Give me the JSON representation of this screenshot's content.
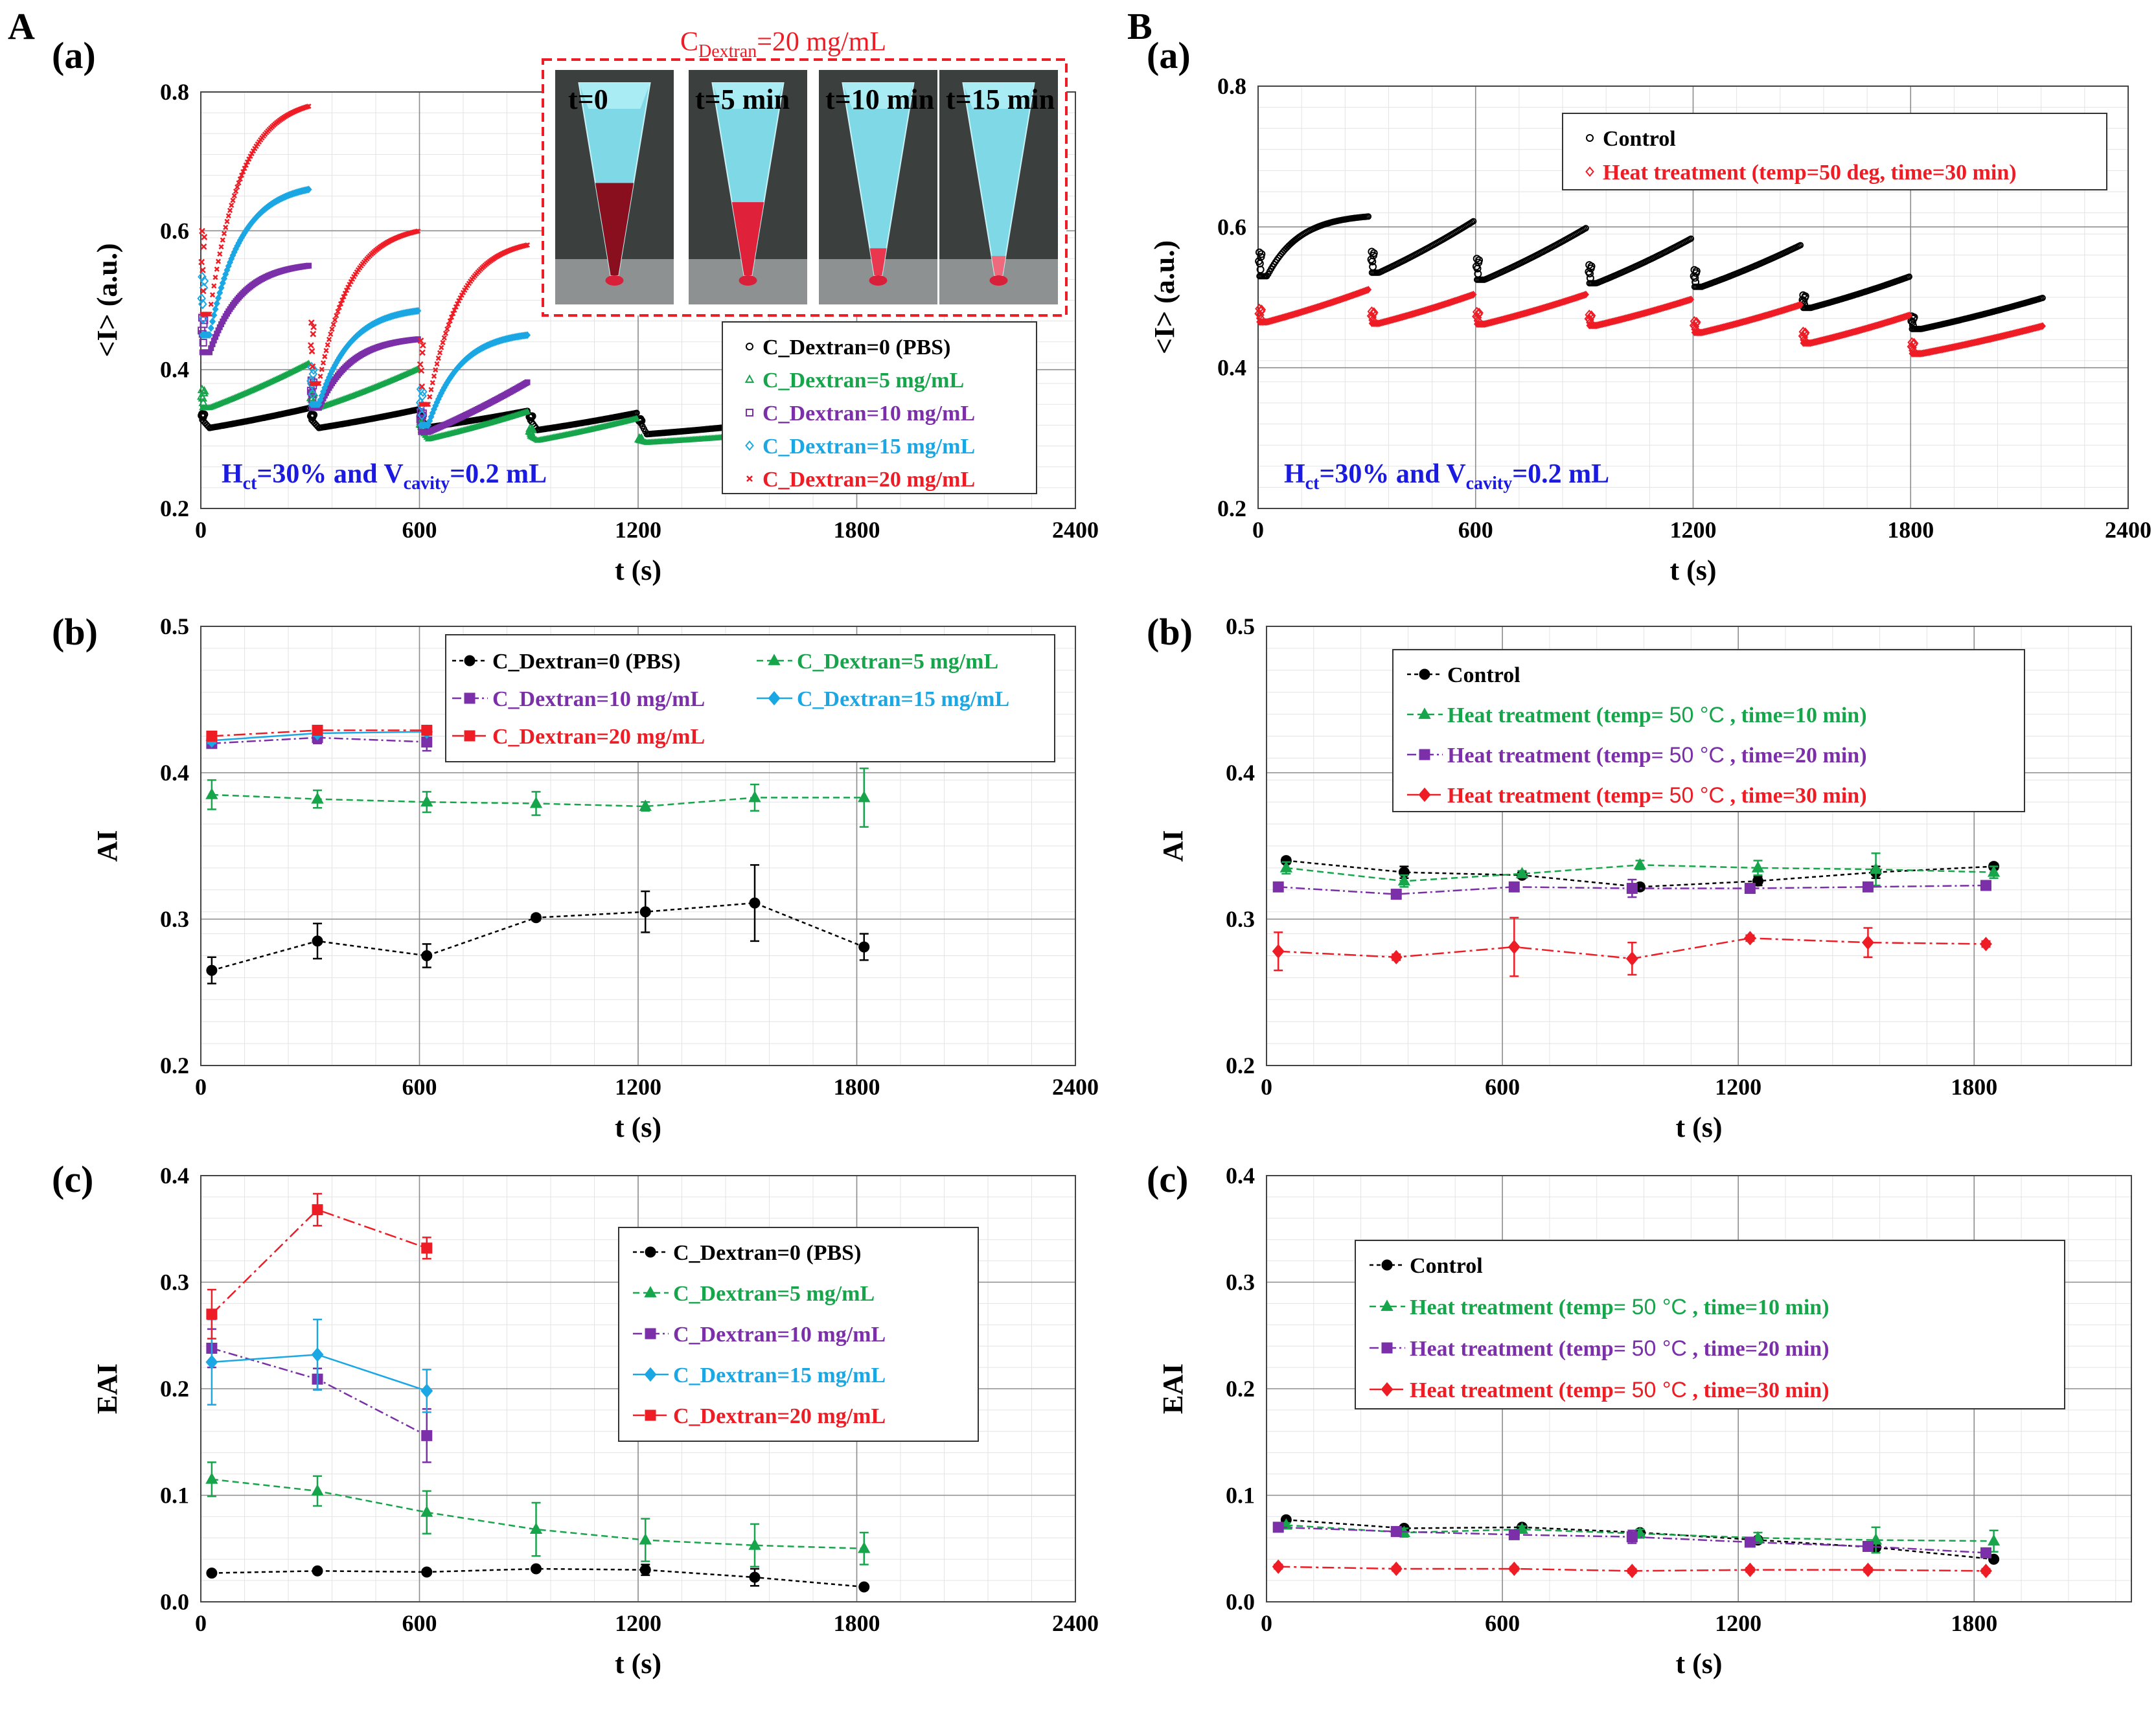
{
  "panel_labels": {
    "A": "A",
    "B": "B"
  },
  "inset": {
    "title_main": "C",
    "title_sub": "Dextran",
    "title_rest": "=20 mg/mL",
    "frames": [
      "t=0",
      "t=5 min",
      "t=10 min",
      "t=15 min"
    ]
  },
  "chart_data": [
    {
      "id": "Aa",
      "type": "scatter",
      "sub_label": "(a)",
      "xlabel": "t (s)",
      "ylabel": "<I> (a.u.)",
      "xlim": [
        0,
        2400
      ],
      "ylim": [
        0.2,
        0.8
      ],
      "xticks": [
        0,
        600,
        1200,
        1800,
        2400
      ],
      "yticks": [
        0.2,
        0.4,
        0.6,
        0.8
      ],
      "annotation": {
        "a": "H",
        "a_sub": "ct",
        "b": "=30% and V",
        "b_sub": "cavity",
        "c": "=0.2 mL"
      },
      "legend": [
        "C_Dextran=0 (PBS)",
        "C_Dextran=5 mg/mL",
        "C_Dextran=10 mg/mL",
        "C_Dextran=15 mg/mL",
        "C_Dextran=20 mg/mL"
      ],
      "series": [
        {
          "name": "C_Dextran=0 (PBS)",
          "color": "#000000",
          "marker": "circle",
          "cycles": [
            [
              0,
              300,
              0.33,
              0.316,
              0.345
            ],
            [
              300,
              600,
              0.33,
              0.316,
              0.343
            ],
            [
              600,
              900,
              0.33,
              0.317,
              0.341
            ],
            [
              900,
              1200,
              0.33,
              0.313,
              0.338
            ],
            [
              1200,
              1500,
              0.33,
              0.307,
              0.32
            ]
          ]
        },
        {
          "name": "C_Dextran=5 mg/mL",
          "color": "#17a54b",
          "marker": "triangle",
          "cycles": [
            [
              0,
              300,
              0.345,
              0.345,
              0.41
            ],
            [
              300,
              600,
              0.345,
              0.345,
              0.402
            ],
            [
              600,
              900,
              0.315,
              0.3,
              0.34
            ],
            [
              900,
              1200,
              0.305,
              0.298,
              0.33
            ],
            [
              1200,
              1500,
              0.298,
              0.295,
              0.305
            ]
          ]
        },
        {
          "name": "C_Dextran=10 mg/mL",
          "color": "#7b2fa8",
          "marker": "square",
          "cycles": [
            [
              0,
              300,
              0.425,
              0.425,
              0.55
            ],
            [
              300,
              600,
              0.345,
              0.345,
              0.444
            ],
            [
              600,
              900,
              0.31,
              0.31,
              0.383
            ]
          ]
        },
        {
          "name": "C_Dextran=15 mg/mL",
          "color": "#1aa7e3",
          "marker": "diamond",
          "cycles": [
            [
              0,
              300,
              0.45,
              0.45,
              0.66
            ],
            [
              300,
              600,
              0.35,
              0.35,
              0.485
            ],
            [
              600,
              900,
              0.32,
              0.32,
              0.45
            ]
          ]
        },
        {
          "name": "C_Dextran=20 mg/mL",
          "color": "#ee1c25",
          "marker": "x",
          "cycles": [
            [
              0,
              300,
              0.48,
              0.48,
              0.78
            ],
            [
              300,
              600,
              0.38,
              0.38,
              0.6
            ],
            [
              600,
              900,
              0.35,
              0.35,
              0.58
            ]
          ]
        }
      ]
    },
    {
      "id": "Ba",
      "type": "scatter",
      "sub_label": "(a)",
      "xlabel": "t (s)",
      "ylabel": "<I> (a.u.)",
      "xlim": [
        0,
        2400
      ],
      "ylim": [
        0.2,
        0.8
      ],
      "xticks": [
        0,
        600,
        1200,
        1800,
        2400
      ],
      "yticks": [
        0.2,
        0.4,
        0.6,
        0.8
      ],
      "annotation": {
        "a": "H",
        "a_sub": "ct",
        "b": "=30% and V",
        "b_sub": "cavity",
        "c": "=0.2 mL"
      },
      "legend": [
        "Control",
        "Heat treatment (temp=50 deg, time=30 min)"
      ],
      "series": [
        {
          "name": "Control",
          "color": "#000000",
          "marker": "circle",
          "cycles": [
            [
              0,
              310,
              0.53,
              0.53,
              0.615
            ],
            [
              310,
              600,
              0.535,
              0.535,
              0.61
            ],
            [
              600,
              910,
              0.525,
              0.525,
              0.6
            ],
            [
              910,
              1200,
              0.52,
              0.52,
              0.585
            ],
            [
              1200,
              1500,
              0.515,
              0.515,
              0.575
            ],
            [
              1500,
              1800,
              0.485,
              0.485,
              0.53
            ],
            [
              1800,
              2170,
              0.455,
              0.455,
              0.5
            ]
          ]
        },
        {
          "name": "Heat treatment (temp=50 deg, time=30 min)",
          "color": "#ee1c25",
          "marker": "diamond",
          "cycles": [
            [
              0,
              310,
              0.465,
              0.465,
              0.512
            ],
            [
              310,
              600,
              0.463,
              0.463,
              0.505
            ],
            [
              600,
              910,
              0.462,
              0.462,
              0.505
            ],
            [
              910,
              1200,
              0.46,
              0.46,
              0.498
            ],
            [
              1200,
              1500,
              0.45,
              0.45,
              0.49
            ],
            [
              1500,
              1800,
              0.435,
              0.435,
              0.475
            ],
            [
              1800,
              2170,
              0.42,
              0.42,
              0.46
            ]
          ]
        }
      ]
    },
    {
      "id": "Ab",
      "type": "line",
      "sub_label": "(b)",
      "xlabel": "t (s)",
      "ylabel": "AI",
      "xlim": [
        0,
        2400
      ],
      "ylim": [
        0.2,
        0.5
      ],
      "xticks": [
        0,
        600,
        1200,
        1800,
        2400
      ],
      "yticks": [
        0.2,
        0.3,
        0.4,
        0.5
      ],
      "legend": [
        "C_Dextran=0 (PBS)",
        "C_Dextran=5 mg/mL",
        "C_Dextran=10 mg/mL",
        "C_Dextran=15 mg/mL",
        "C_Dextran=20 mg/mL"
      ],
      "series": [
        {
          "name": "C_Dextran=0 (PBS)",
          "color": "#000000",
          "marker": "circle",
          "x": [
            30,
            320,
            620,
            920,
            1220,
            1520,
            1820
          ],
          "y": [
            0.265,
            0.285,
            0.275,
            0.301,
            0.305,
            0.311,
            0.281
          ],
          "err": [
            0.009,
            0.012,
            0.008,
            0.002,
            0.014,
            0.026,
            0.009
          ]
        },
        {
          "name": "C_Dextran=5 mg/mL",
          "color": "#17a54b",
          "marker": "triangle",
          "x": [
            30,
            320,
            620,
            920,
            1220,
            1520,
            1820
          ],
          "y": [
            0.385,
            0.382,
            0.38,
            0.379,
            0.377,
            0.383,
            0.383
          ],
          "err": [
            0.01,
            0.006,
            0.007,
            0.008,
            0.003,
            0.009,
            0.02
          ]
        },
        {
          "name": "C_Dextran=10 mg/mL",
          "color": "#7b2fa8",
          "marker": "square",
          "x": [
            30,
            320,
            620
          ],
          "y": [
            0.42,
            0.424,
            0.421
          ],
          "err": [
            0.003,
            0.004,
            0.006
          ]
        },
        {
          "name": "C_Dextran=15 mg/mL",
          "color": "#1aa7e3",
          "marker": "diamond",
          "x": [
            30,
            320,
            620
          ],
          "y": [
            0.422,
            0.427,
            0.428
          ],
          "err": [
            0.002,
            0.002,
            0.002
          ]
        },
        {
          "name": "C_Dextran=20 mg/mL",
          "color": "#ee1c25",
          "marker": "square",
          "x": [
            30,
            320,
            620
          ],
          "y": [
            0.425,
            0.429,
            0.429
          ],
          "err": [
            0.002,
            0.002,
            0.002
          ]
        }
      ]
    },
    {
      "id": "Bb",
      "type": "line",
      "sub_label": "(b)",
      "xlabel": "t (s)",
      "ylabel": "AI",
      "xlim": [
        0,
        2200
      ],
      "ylim": [
        0.2,
        0.5
      ],
      "xticks": [
        0,
        600,
        1200,
        1800
      ],
      "yticks": [
        0.2,
        0.3,
        0.4,
        0.5
      ],
      "legend_unit": "°C",
      "legend": [
        "Control",
        "Heat treatment (temp= 50 °C , time=10 min)",
        "Heat treatment (temp= 50 °C , time=20 min)",
        "Heat treatment (temp= 50 °C , time=30 min)"
      ],
      "series": [
        {
          "name": "Control",
          "color": "#000000",
          "marker": "circle",
          "x": [
            50,
            350,
            650,
            950,
            1250,
            1550,
            1850
          ],
          "y": [
            0.34,
            0.332,
            0.33,
            0.322,
            0.326,
            0.332,
            0.336
          ],
          "err": [
            0.002,
            0.004,
            0.002,
            0.002,
            0.003,
            0.004,
            0.002
          ]
        },
        {
          "name": "Heat treatment (temp= 50 °C , time=10 min)",
          "color": "#17a54b",
          "marker": "triangle",
          "x": [
            50,
            350,
            650,
            950,
            1250,
            1550,
            1850
          ],
          "y": [
            0.335,
            0.326,
            0.331,
            0.337,
            0.335,
            0.334,
            0.332
          ],
          "err": [
            0.004,
            0.004,
            0.002,
            0.003,
            0.005,
            0.011,
            0.004
          ]
        },
        {
          "name": "Heat treatment (temp= 50 °C , time=20 min)",
          "color": "#7b2fa8",
          "marker": "square",
          "x": [
            30,
            330,
            630,
            930,
            1230,
            1530,
            1830
          ],
          "y": [
            0.322,
            0.317,
            0.322,
            0.321,
            0.321,
            0.322,
            0.323
          ],
          "err": [
            0.003,
            0.002,
            0.003,
            0.006,
            0.003,
            0.002,
            0.002
          ]
        },
        {
          "name": "Heat treatment (temp= 50 °C , time=30 min)",
          "color": "#ee1c25",
          "marker": "diamond",
          "x": [
            30,
            330,
            630,
            930,
            1230,
            1530,
            1830
          ],
          "y": [
            0.278,
            0.274,
            0.281,
            0.273,
            0.287,
            0.284,
            0.283
          ],
          "err": [
            0.013,
            0.002,
            0.02,
            0.011,
            0.002,
            0.01,
            0.002
          ]
        }
      ]
    },
    {
      "id": "Ac",
      "type": "line",
      "sub_label": "(c)",
      "xlabel": "t (s)",
      "ylabel": "EAI",
      "xlim": [
        0,
        2400
      ],
      "ylim": [
        0.0,
        0.4
      ],
      "xticks": [
        0,
        600,
        1200,
        1800,
        2400
      ],
      "yticks": [
        "0.0",
        "0.1",
        "0.2",
        "0.3",
        "0.4"
      ],
      "legend": [
        "C_Dextran=0 (PBS)",
        "C_Dextran=5 mg/mL",
        "C_Dextran=10 mg/mL",
        "C_Dextran=15 mg/mL",
        "C_Dextran=20 mg/mL"
      ],
      "series": [
        {
          "name": "C_Dextran=0 (PBS)",
          "color": "#000000",
          "marker": "circle",
          "x": [
            30,
            320,
            620,
            920,
            1220,
            1520,
            1820
          ],
          "y": [
            0.027,
            0.029,
            0.028,
            0.031,
            0.03,
            0.023,
            0.014
          ],
          "err": [
            0.002,
            0.002,
            0.002,
            0.002,
            0.005,
            0.008,
            0.002
          ]
        },
        {
          "name": "C_Dextran=5 mg/mL",
          "color": "#17a54b",
          "marker": "triangle",
          "x": [
            30,
            320,
            620,
            920,
            1220,
            1520,
            1820
          ],
          "y": [
            0.115,
            0.104,
            0.084,
            0.068,
            0.058,
            0.053,
            0.05
          ],
          "err": [
            0.016,
            0.014,
            0.02,
            0.025,
            0.02,
            0.02,
            0.015
          ]
        },
        {
          "name": "C_Dextran=10 mg/mL",
          "color": "#7b2fa8",
          "marker": "square",
          "x": [
            30,
            320,
            620
          ],
          "y": [
            0.238,
            0.209,
            0.156
          ],
          "err": [
            0.018,
            0.01,
            0.025
          ]
        },
        {
          "name": "C_Dextran=15 mg/mL",
          "color": "#1aa7e3",
          "marker": "diamond",
          "x": [
            30,
            320,
            620
          ],
          "y": [
            0.225,
            0.232,
            0.198
          ],
          "err": [
            0.04,
            0.033,
            0.02
          ]
        },
        {
          "name": "C_Dextran=20 mg/mL",
          "color": "#ee1c25",
          "marker": "square",
          "x": [
            30,
            320,
            620
          ],
          "y": [
            0.27,
            0.368,
            0.332
          ],
          "err": [
            0.023,
            0.015,
            0.01
          ]
        }
      ]
    },
    {
      "id": "Bc",
      "type": "line",
      "sub_label": "(c)",
      "xlabel": "t (s)",
      "ylabel": "EAI",
      "xlim": [
        0,
        2200
      ],
      "ylim": [
        0.0,
        0.4
      ],
      "xticks": [
        0,
        600,
        1200,
        1800
      ],
      "yticks": [
        "0.0",
        "0.1",
        "0.2",
        "0.3",
        "0.4"
      ],
      "legend_unit": "°C",
      "legend": [
        "Control",
        "Heat treatment (temp= 50 °C , time=10 min)",
        "Heat treatment (temp= 50 °C , time=20 min)",
        "Heat treatment (temp= 50 °C , time=30 min)"
      ],
      "series": [
        {
          "name": "Control",
          "color": "#000000",
          "marker": "circle",
          "x": [
            50,
            350,
            650,
            950,
            1250,
            1550,
            1850
          ],
          "y": [
            0.077,
            0.069,
            0.07,
            0.065,
            0.058,
            0.051,
            0.04
          ],
          "err": [
            0.002,
            0.002,
            0.002,
            0.002,
            0.002,
            0.002,
            0.002
          ]
        },
        {
          "name": "Heat treatment (temp= 50 °C , time=10 min)",
          "color": "#17a54b",
          "marker": "triangle",
          "x": [
            50,
            350,
            650,
            950,
            1250,
            1550,
            1850
          ],
          "y": [
            0.072,
            0.065,
            0.068,
            0.064,
            0.06,
            0.058,
            0.057
          ],
          "err": [
            0.002,
            0.004,
            0.003,
            0.004,
            0.005,
            0.012,
            0.01
          ]
        },
        {
          "name": "Heat treatment (temp= 50 °C , time=20 min)",
          "color": "#7b2fa8",
          "marker": "square",
          "x": [
            30,
            330,
            630,
            930,
            1230,
            1530,
            1830
          ],
          "y": [
            0.07,
            0.066,
            0.063,
            0.061,
            0.056,
            0.052,
            0.046
          ],
          "err": [
            0.003,
            0.003,
            0.004,
            0.006,
            0.003,
            0.003,
            0.004
          ]
        },
        {
          "name": "Heat treatment (temp= 50 °C , time=30 min)",
          "color": "#ee1c25",
          "marker": "diamond",
          "x": [
            30,
            330,
            630,
            930,
            1230,
            1530,
            1830
          ],
          "y": [
            0.033,
            0.031,
            0.031,
            0.029,
            0.03,
            0.03,
            0.029
          ],
          "err": [
            0.002,
            0.002,
            0.002,
            0.002,
            0.002,
            0.002,
            0.002
          ]
        }
      ]
    }
  ]
}
